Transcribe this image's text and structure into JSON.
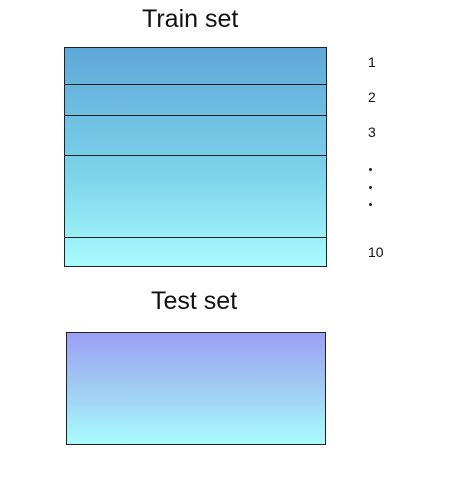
{
  "train": {
    "title": "Train set",
    "fold_labels": [
      "1",
      "2",
      "3",
      "10"
    ],
    "ellipsis": ".",
    "colors": {
      "top": "#5fa8d8",
      "bottom": "#a8fbfd"
    }
  },
  "test": {
    "title": "Test set",
    "colors": {
      "top": "#9c9ff6",
      "bottom": "#a9fbfd"
    }
  }
}
